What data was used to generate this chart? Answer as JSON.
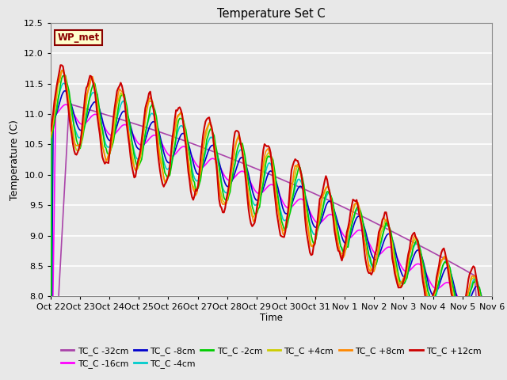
{
  "title": "Temperature Set C",
  "xlabel": "Time",
  "ylabel": "Temperature (C)",
  "ylim": [
    8.0,
    12.5
  ],
  "yticks": [
    8.0,
    8.5,
    9.0,
    9.5,
    10.0,
    10.5,
    11.0,
    11.5,
    12.0,
    12.5
  ],
  "x_tick_labels": [
    "Oct 22",
    "Oct 23",
    "Oct 24",
    "Oct 25",
    "Oct 26",
    "Oct 27",
    "Oct 28",
    "Oct 29",
    "Oct 30",
    "Oct 31",
    "Nov 1",
    "Nov 2",
    "Nov 3",
    "Nov 4",
    "Nov 5",
    "Nov 6"
  ],
  "annotation_text": "WP_met",
  "annotation_bg": "#FFFFCC",
  "annotation_border": "#8B0000",
  "annotation_text_color": "#8B0000",
  "series": [
    {
      "label": "TC_C -32cm",
      "color": "#AA44AA",
      "lw": 1.2
    },
    {
      "label": "TC_C -16cm",
      "color": "#FF00FF",
      "lw": 1.2
    },
    {
      "label": "TC_C -8cm",
      "color": "#0000CC",
      "lw": 1.2
    },
    {
      "label": "TC_C -4cm",
      "color": "#00CCCC",
      "lw": 1.2
    },
    {
      "label": "TC_C -2cm",
      "color": "#00CC00",
      "lw": 1.2
    },
    {
      "label": "TC_C +4cm",
      "color": "#CCCC00",
      "lw": 1.2
    },
    {
      "label": "TC_C +8cm",
      "color": "#FF8800",
      "lw": 1.2
    },
    {
      "label": "TC_C +12cm",
      "color": "#CC0000",
      "lw": 1.5
    }
  ],
  "plot_bg_color": "#E8E8E8",
  "grid_color": "#FFFFFF",
  "fig_bg_color": "#E8E8E8"
}
